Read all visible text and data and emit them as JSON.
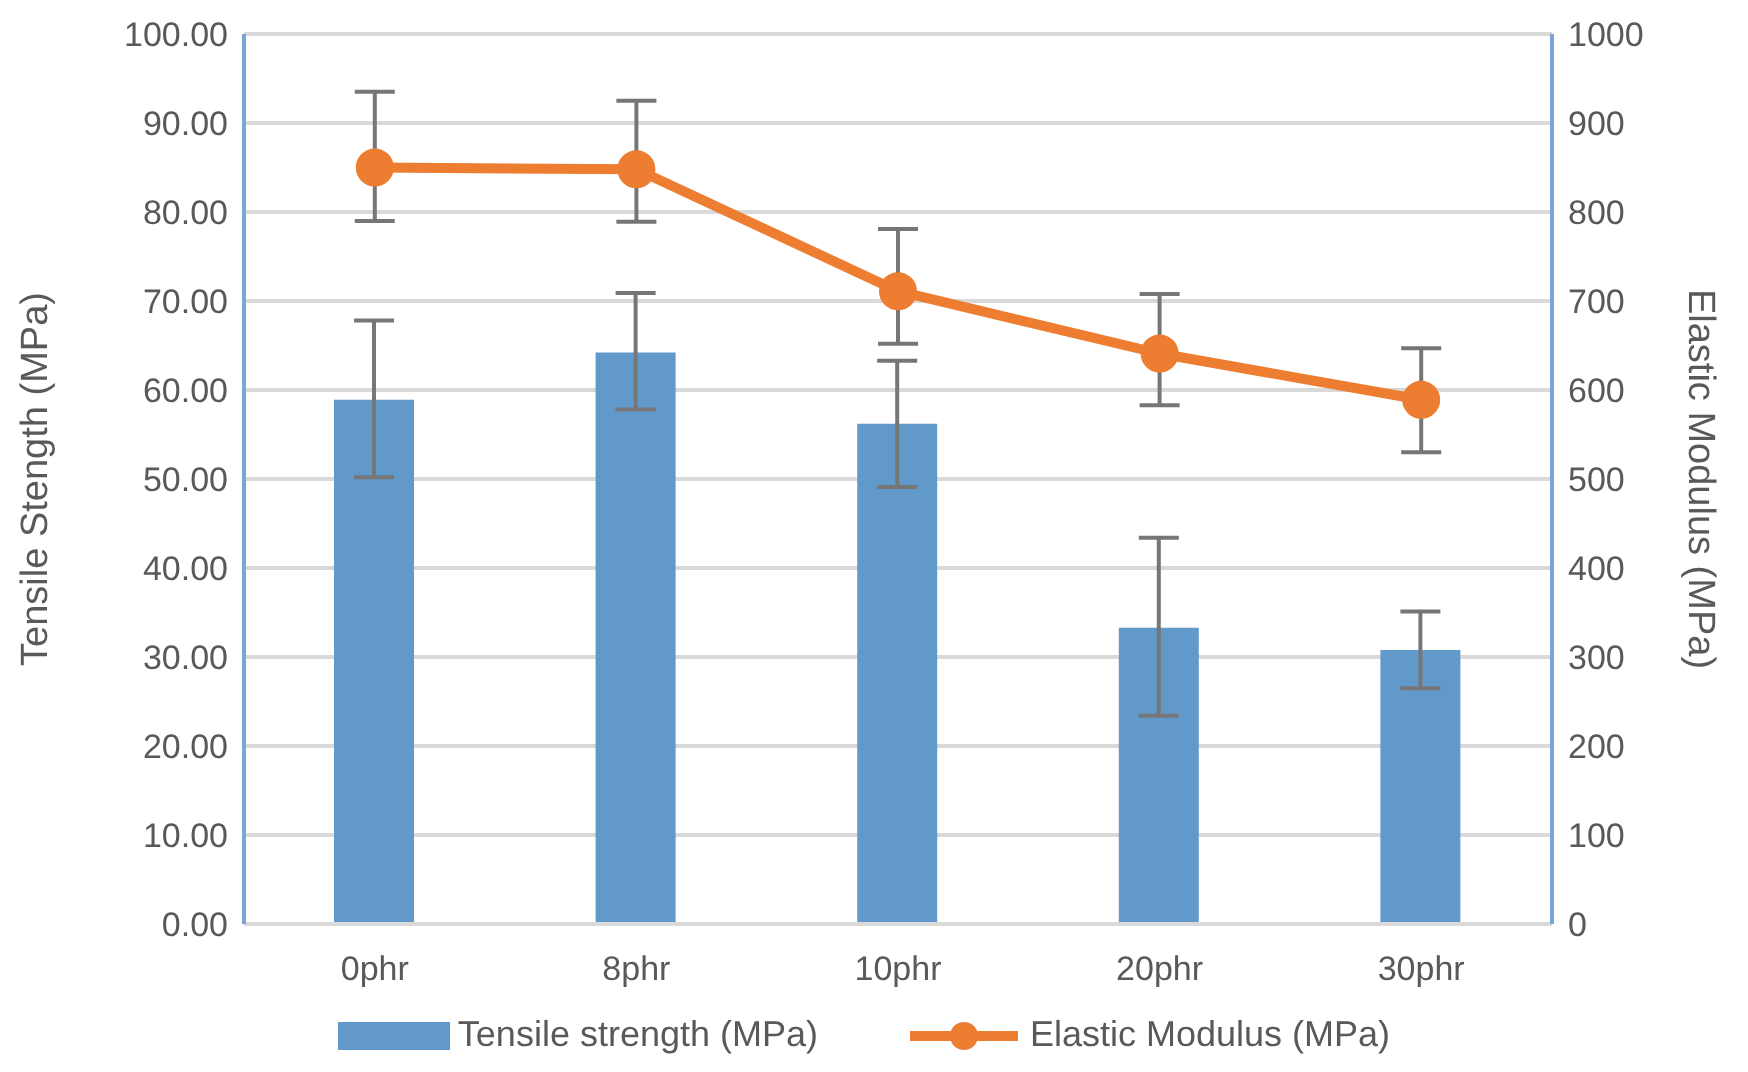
{
  "chart_data": {
    "type": "bar",
    "ylabel": "Tensile Stength (MPa)",
    "y2label": "Elastic Modulus (MPa)",
    "categories": [
      "0phr",
      "8phr",
      "10phr",
      "20phr",
      "30phr"
    ],
    "series": [
      {
        "name": "Tensile strength (MPa)",
        "color": "#6199cb",
        "values": [
          58.9,
          64.2,
          56.2,
          33.3,
          30.8
        ],
        "errors": [
          [
            50.2,
            67.8
          ],
          [
            57.8,
            70.9
          ],
          [
            49.1,
            63.3
          ],
          [
            23.4,
            43.4
          ],
          [
            26.5,
            35.1
          ]
        ]
      },
      {
        "name": "Elastic Modulus (MPa)",
        "type": "line",
        "axis": "y2",
        "color": "#ed7d31",
        "values": [
          850,
          848,
          711,
          641,
          589
        ],
        "errors": [
          [
            790,
            935
          ],
          [
            789,
            925
          ],
          [
            652,
            781
          ],
          [
            583,
            708
          ],
          [
            530,
            647
          ]
        ],
        "marker": "circle"
      }
    ],
    "ylim": [
      0,
      100
    ],
    "yticks": [
      {
        "value": 0,
        "label": "0.00"
      },
      {
        "value": 10,
        "label": "10.00"
      },
      {
        "value": 20,
        "label": "20.00"
      },
      {
        "value": 30,
        "label": "30.00"
      },
      {
        "value": 40,
        "label": "40.00"
      },
      {
        "value": 50,
        "label": "50.00"
      },
      {
        "value": 60,
        "label": "60.00"
      },
      {
        "value": 70,
        "label": "70.00"
      },
      {
        "value": 80,
        "label": "80.00"
      },
      {
        "value": 90,
        "label": "90.00"
      },
      {
        "value": 100,
        "label": "100.00"
      }
    ],
    "y2lim": [
      0,
      1000
    ],
    "y2ticks": [
      0,
      100,
      200,
      300,
      400,
      500,
      600,
      700,
      800,
      900,
      1000
    ],
    "grid": "y",
    "legend": "bottom"
  }
}
